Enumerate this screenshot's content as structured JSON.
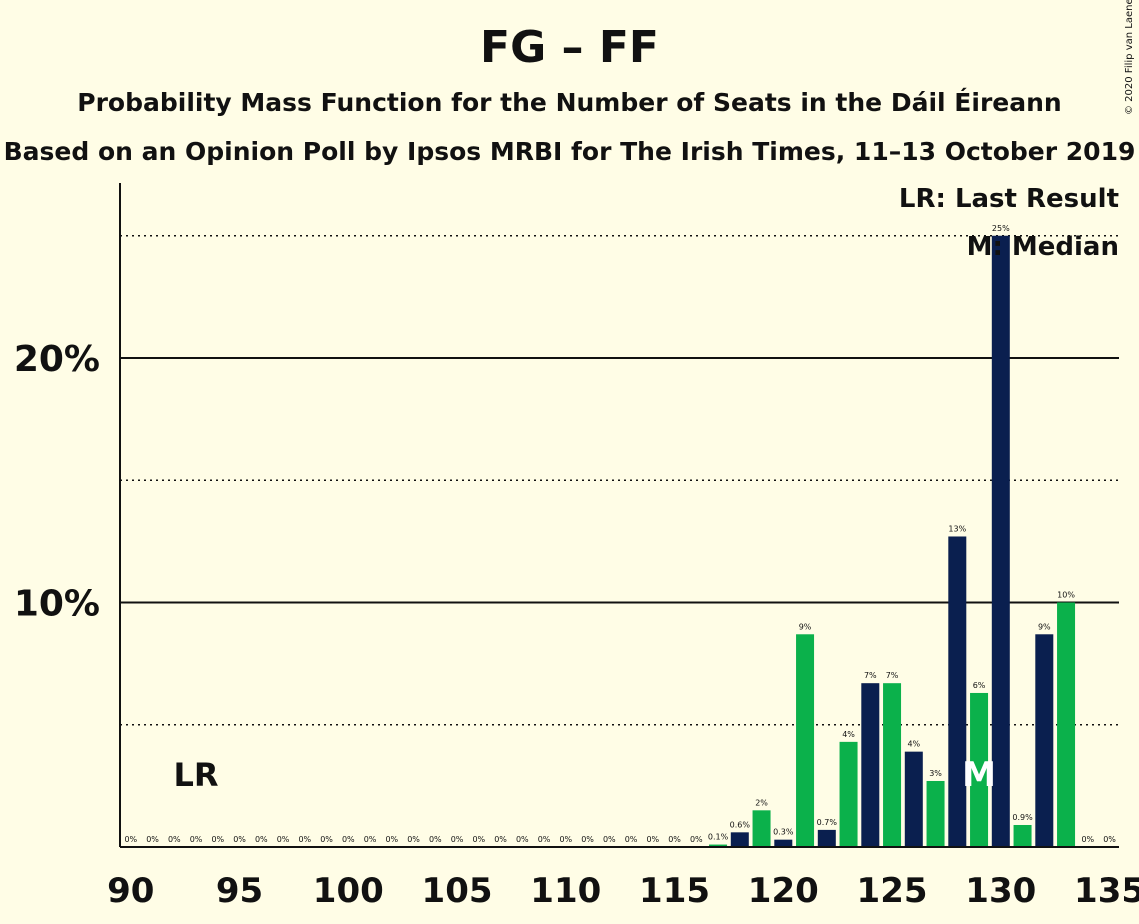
{
  "chart_data": {
    "type": "bar",
    "title": "FG – FF",
    "subtitle": "Probability Mass Function for the Number of Seats in the Dáil Éireann",
    "subtitle2": "Based on an Opinion Poll by Ipsos MRBI for The Irish Times, 11–13 October 2019",
    "copyright": "© 2020 Filip van Laenen",
    "legend": {
      "last_result": "LR: Last Result",
      "median": "M: Median",
      "placement": "top-right"
    },
    "markers": {
      "last_result": {
        "seat": 93,
        "label": "LR"
      },
      "median": {
        "seat": 129,
        "label": "M"
      }
    },
    "xlim": [
      90,
      135
    ],
    "x_ticks": [
      "90",
      "95",
      "100",
      "105",
      "110",
      "115",
      "120",
      "125",
      "130",
      "135"
    ],
    "ylim": [
      0,
      27
    ],
    "y_ticks": [
      {
        "value": 10,
        "label": "10%"
      },
      {
        "value": 20,
        "label": "20%"
      }
    ],
    "y_minor_gridlines": [
      5,
      15,
      25
    ],
    "colors": {
      "dark": "#0a1f4f",
      "green": "#0bb14b",
      "background": "#fffde6"
    },
    "bars": [
      {
        "seat": 90,
        "value": 0,
        "label": "0%"
      },
      {
        "seat": 91,
        "value": 0,
        "label": "0%"
      },
      {
        "seat": 92,
        "value": 0,
        "label": "0%"
      },
      {
        "seat": 93,
        "value": 0,
        "label": "0%"
      },
      {
        "seat": 94,
        "value": 0,
        "label": "0%"
      },
      {
        "seat": 95,
        "value": 0,
        "label": "0%"
      },
      {
        "seat": 96,
        "value": 0,
        "label": "0%"
      },
      {
        "seat": 97,
        "value": 0,
        "label": "0%"
      },
      {
        "seat": 98,
        "value": 0,
        "label": "0%"
      },
      {
        "seat": 99,
        "value": 0,
        "label": "0%"
      },
      {
        "seat": 100,
        "value": 0,
        "label": "0%"
      },
      {
        "seat": 101,
        "value": 0,
        "label": "0%"
      },
      {
        "seat": 102,
        "value": 0,
        "label": "0%"
      },
      {
        "seat": 103,
        "value": 0,
        "label": "0%"
      },
      {
        "seat": 104,
        "value": 0,
        "label": "0%"
      },
      {
        "seat": 105,
        "value": 0,
        "label": "0%"
      },
      {
        "seat": 106,
        "value": 0,
        "label": "0%"
      },
      {
        "seat": 107,
        "value": 0,
        "label": "0%"
      },
      {
        "seat": 108,
        "value": 0,
        "label": "0%"
      },
      {
        "seat": 109,
        "value": 0,
        "label": "0%"
      },
      {
        "seat": 110,
        "value": 0,
        "label": "0%"
      },
      {
        "seat": 111,
        "value": 0,
        "label": "0%"
      },
      {
        "seat": 112,
        "value": 0,
        "label": "0%"
      },
      {
        "seat": 113,
        "value": 0,
        "label": "0%"
      },
      {
        "seat": 114,
        "value": 0,
        "label": "0%"
      },
      {
        "seat": 115,
        "value": 0,
        "label": "0%"
      },
      {
        "seat": 116,
        "value": 0,
        "label": "0%"
      },
      {
        "seat": 117,
        "value": 0.1,
        "label": "0.1%"
      },
      {
        "seat": 118,
        "value": 0.6,
        "label": "0.6%"
      },
      {
        "seat": 119,
        "value": 1.5,
        "label": "2%"
      },
      {
        "seat": 120,
        "value": 0.3,
        "label": "0.3%"
      },
      {
        "seat": 121,
        "value": 8.7,
        "label": "9%"
      },
      {
        "seat": 122,
        "value": 0.7,
        "label": "0.7%"
      },
      {
        "seat": 123,
        "value": 4.3,
        "label": "4%"
      },
      {
        "seat": 124,
        "value": 6.7,
        "label": "7%"
      },
      {
        "seat": 125,
        "value": 6.7,
        "label": "7%"
      },
      {
        "seat": 126,
        "value": 3.9,
        "label": "4%"
      },
      {
        "seat": 127,
        "value": 2.7,
        "label": "3%"
      },
      {
        "seat": 128,
        "value": 12.7,
        "label": "13%"
      },
      {
        "seat": 129,
        "value": 6.3,
        "label": "6%"
      },
      {
        "seat": 130,
        "value": 25.0,
        "label": "25%"
      },
      {
        "seat": 131,
        "value": 0.9,
        "label": "0.9%"
      },
      {
        "seat": 132,
        "value": 8.7,
        "label": "9%"
      },
      {
        "seat": 133,
        "value": 10.0,
        "label": "10%"
      },
      {
        "seat": 134,
        "value": 0,
        "label": "0%"
      },
      {
        "seat": 135,
        "value": 0,
        "label": "0%"
      }
    ]
  }
}
